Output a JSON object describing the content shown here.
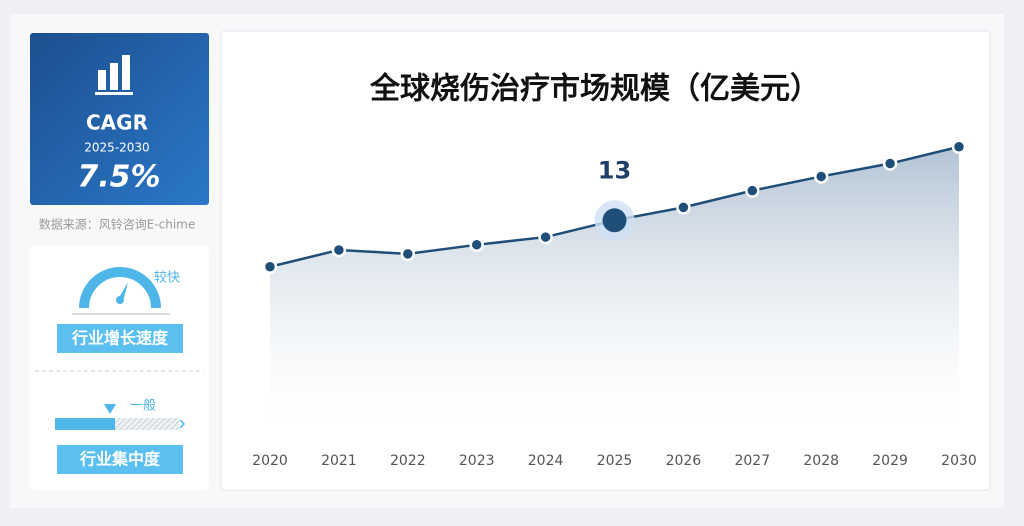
{
  "chart_data": {
    "type": "line",
    "title": "全球烧伤治疗市场规模（亿美元）",
    "categories": [
      "2020",
      "2021",
      "2022",
      "2023",
      "2024",
      "2025",
      "2026",
      "2027",
      "2028",
      "2029",
      "2030"
    ],
    "values": [
      9.4,
      10.7,
      10.4,
      11.1,
      11.7,
      13,
      14.0,
      15.3,
      16.4,
      17.4,
      18.7
    ],
    "color": "#1f4e79",
    "highlight_index": 5
  },
  "sidebar": {
    "cagr_label": "CAGR",
    "cagr_period": "2025-2030",
    "cagr_value": "7.5%",
    "source": "数据来源：风铃咨询E-chime",
    "growth_level": "较快",
    "growth_title": "行业增长速度",
    "concentration_level": "一般",
    "concentration_title": "行业集中度"
  }
}
